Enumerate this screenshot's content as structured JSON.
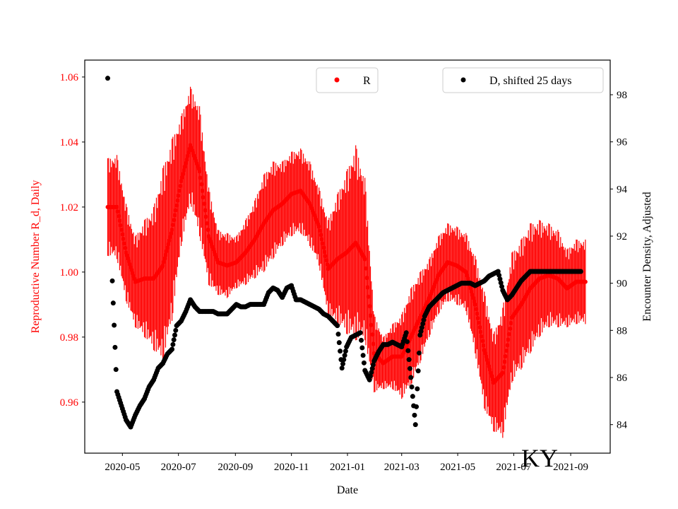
{
  "chart_data": {
    "type": "scatter",
    "xlabel": "Date",
    "ylabel_left": "Reproductive Number R_d, Daily",
    "ylabel_right": "Encounter Density, Adjusted",
    "annotation": "KY",
    "xlim": [
      "2020-03-21",
      "2021-10-14"
    ],
    "ylim_left": [
      0.9443,
      1.0652
    ],
    "ylim_right": [
      82.79,
      99.47
    ],
    "x_ticks": [
      "2020-05",
      "2020-07",
      "2020-09",
      "2020-11",
      "2021-01",
      "2021-03",
      "2021-05",
      "2021-07",
      "2021-09"
    ],
    "y_ticks_left": [
      "0.96",
      "0.98",
      "1.00",
      "1.02",
      "1.04",
      "1.06"
    ],
    "y_ticks_right": [
      "84",
      "86",
      "88",
      "90",
      "92",
      "94",
      "96",
      "98"
    ],
    "colors": {
      "R": "#ff0000",
      "D": "#000000"
    },
    "series": [
      {
        "name": "R",
        "axis": "left",
        "legend": "top-center",
        "start_date": "2020-04-15",
        "step_days": 10,
        "values": [
          1.02,
          1.02,
          1.006,
          0.997,
          0.998,
          0.998,
          1.002,
          1.013,
          1.028,
          1.039,
          1.031,
          1.011,
          1.003,
          1.002,
          1.003,
          1.006,
          1.01,
          1.015,
          1.019,
          1.021,
          1.024,
          1.025,
          1.021,
          1.014,
          1.001,
          1.004,
          1.006,
          1.009,
          1.004,
          0.975,
          0.972,
          0.974,
          0.974,
          0.98,
          0.986,
          0.992,
          0.999,
          1.003,
          1.002,
          1.0,
          0.99,
          0.976,
          0.966,
          0.969,
          0.986,
          0.99,
          0.995,
          0.998,
          0.999,
          0.998,
          0.995,
          0.997,
          0.997
        ],
        "errors": [
          0.015,
          0.016,
          0.015,
          0.014,
          0.018,
          0.022,
          0.03,
          0.028,
          0.02,
          0.018,
          0.02,
          0.015,
          0.01,
          0.01,
          0.008,
          0.01,
          0.012,
          0.015,
          0.015,
          0.013,
          0.013,
          0.013,
          0.013,
          0.012,
          0.015,
          0.02,
          0.025,
          0.03,
          0.025,
          0.012,
          0.008,
          0.01,
          0.013,
          0.015,
          0.014,
          0.012,
          0.012,
          0.012,
          0.012,
          0.012,
          0.015,
          0.018,
          0.015,
          0.02,
          0.02,
          0.02,
          0.02,
          0.018,
          0.016,
          0.015,
          0.012,
          0.013,
          0.013
        ]
      },
      {
        "name": "D, shifted 25 days",
        "axis": "right",
        "legend": "top-right",
        "start_date": "2020-04-15",
        "step_days": 5,
        "values": [
          98.7,
          90.1,
          85.4,
          84.8,
          84.2,
          83.9,
          84.4,
          84.8,
          85.1,
          85.6,
          85.9,
          86.4,
          86.6,
          87.0,
          87.2,
          88.2,
          88.4,
          88.8,
          89.3,
          89.0,
          88.8,
          88.8,
          88.8,
          88.8,
          88.7,
          88.7,
          88.7,
          88.9,
          89.1,
          89.0,
          89.0,
          89.1,
          89.1,
          89.1,
          89.1,
          89.6,
          89.8,
          89.7,
          89.4,
          89.8,
          89.9,
          89.3,
          89.3,
          89.2,
          89.1,
          89.0,
          88.9,
          88.7,
          88.6,
          88.4,
          88.2,
          86.4,
          87.3,
          87.7,
          87.8,
          87.9,
          86.3,
          85.9,
          86.7,
          87.1,
          87.4,
          87.4,
          87.5,
          87.4,
          87.3,
          87.9,
          86.0,
          84.0,
          87.8,
          88.6,
          89.0,
          89.2,
          89.4,
          89.6,
          89.7,
          89.8,
          89.9,
          90.0,
          90.0,
          90.0,
          89.9,
          90.0,
          90.1,
          90.3,
          90.4,
          90.5,
          89.7,
          89.3,
          89.5,
          89.8,
          90.1,
          90.3,
          90.5,
          90.5,
          90.5,
          90.5,
          90.5,
          90.5,
          90.5,
          90.5,
          90.5,
          90.5,
          90.5,
          90.5
        ]
      }
    ]
  }
}
